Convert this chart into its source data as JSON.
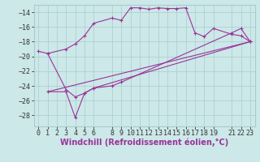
{
  "xlabel": "Windchill (Refroidissement éolien,°C)",
  "background_color": "#cce8e8",
  "grid_color": "#aacccc",
  "line_color": "#993399",
  "xlim": [
    -0.5,
    23.5
  ],
  "ylim": [
    -29.5,
    -13.0
  ],
  "xticks": [
    0,
    1,
    2,
    3,
    4,
    5,
    6,
    8,
    9,
    10,
    11,
    12,
    13,
    14,
    15,
    16,
    17,
    18,
    19,
    21,
    22,
    23
  ],
  "yticks": [
    -28,
    -26,
    -24,
    -22,
    -20,
    -18,
    -16,
    -14
  ],
  "series1_x": [
    0,
    1,
    3,
    4,
    5,
    6,
    8,
    9,
    10,
    11,
    12,
    13,
    14,
    15,
    16,
    17,
    18,
    19,
    21,
    22,
    23
  ],
  "series1_y": [
    -19.3,
    -19.6,
    -19.0,
    -18.3,
    -17.2,
    -15.5,
    -14.8,
    -15.1,
    -13.4,
    -13.4,
    -13.6,
    -13.4,
    -13.5,
    -13.5,
    -13.4,
    -16.8,
    -17.3,
    -16.2,
    -17.0,
    -17.2,
    -18.0
  ],
  "series2_x": [
    1,
    3,
    4,
    5,
    6,
    8,
    9,
    21,
    22,
    23
  ],
  "series2_y": [
    -19.6,
    -24.5,
    -25.5,
    -25.0,
    -24.3,
    -24.0,
    -23.5,
    -16.8,
    -16.2,
    -18.0
  ],
  "series3_x": [
    1,
    3,
    4,
    5,
    6,
    23
  ],
  "series3_y": [
    -24.8,
    -24.8,
    -28.3,
    -25.0,
    -24.3,
    -18.0
  ],
  "series4_x": [
    1,
    23
  ],
  "series4_y": [
    -24.8,
    -18.0
  ],
  "xlabel_fontsize": 7,
  "tick_fontsize": 6
}
